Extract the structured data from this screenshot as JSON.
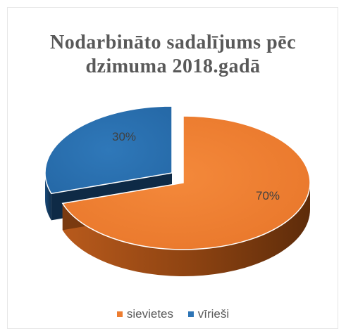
{
  "chart_data": {
    "type": "pie",
    "title": "Nodarbināto sadalījums pēc dzimuma 2018.gadā",
    "title_lines": [
      "Nodarbināto sadalījums pēc",
      "dzimuma 2018.gadā"
    ],
    "style": "3d-exploded",
    "categories": [
      "sievietes",
      "vīrieši"
    ],
    "values": [
      70,
      30
    ],
    "data_labels": [
      "70%",
      "30%"
    ],
    "colors": [
      "#ED7D31",
      "#2E75B6"
    ],
    "legend_position": "bottom"
  }
}
